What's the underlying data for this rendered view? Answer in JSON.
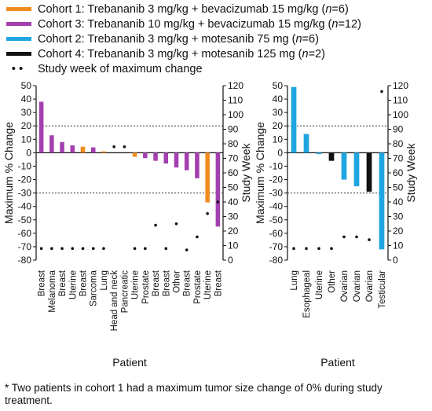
{
  "legend": [
    {
      "label_parts": [
        {
          "t": "Cohort 1: Trebananib 3 mg/kg + bevacizumab 15 mg/kg ("
        },
        {
          "t": "n",
          "i": true
        },
        {
          "t": "=6)"
        }
      ],
      "color": "#f08c1e",
      "kind": "bar"
    },
    {
      "label_parts": [
        {
          "t": "Cohort 3: Trebananib 10 mg/kg + bevacizumab 15 mg/kg ("
        },
        {
          "t": "n",
          "i": true
        },
        {
          "t": "=12)"
        }
      ],
      "color": "#a43fb0",
      "kind": "bar"
    },
    {
      "label_parts": [
        {
          "t": "Cohort 2: Trebananib 3 mg/kg + motesanib 75 mg ("
        },
        {
          "t": "n",
          "i": true
        },
        {
          "t": "=6)"
        }
      ],
      "color": "#1fa6e0",
      "kind": "bar"
    },
    {
      "label_parts": [
        {
          "t": "Cohort 4: Trebananib 3 mg/kg + motesanib 125 mg ("
        },
        {
          "t": "n",
          "i": true
        },
        {
          "t": "=2)"
        }
      ],
      "color": "#111111",
      "kind": "bar"
    },
    {
      "label_parts": [
        {
          "t": "Study week of maximum change"
        }
      ],
      "color": "#111111",
      "kind": "dots"
    }
  ],
  "footnote": "* Two patients in cohort 1 had a maximum tumor size change of 0% during study treatment.",
  "chart_data": [
    {
      "type": "bar",
      "xlabel": "Patient",
      "ylabel": "Maximum % Change",
      "y2label": "Study Week",
      "ylim": [
        -80,
        50
      ],
      "y2lim": [
        0,
        120
      ],
      "yticks": [
        50,
        40,
        30,
        20,
        10,
        0,
        -10,
        -20,
        -30,
        -40,
        -50,
        -60,
        -70,
        -80
      ],
      "y2ticks": [
        120,
        110,
        100,
        90,
        80,
        70,
        60,
        50,
        40,
        30,
        20,
        10,
        0
      ],
      "reference_lines": [
        20,
        -30
      ],
      "categories": [
        "Breast",
        "Melanoma",
        "Breast",
        "Uterine",
        "Breast",
        "Sarcoma",
        "Lung",
        "Head and neck",
        "Pancreatic",
        "Uterine",
        "Prostate",
        "Breast",
        "Breast",
        "Other",
        "Breast",
        "Prostate",
        "Uterine",
        "Breast"
      ],
      "values": [
        38,
        13,
        8,
        5.5,
        4.5,
        4,
        1,
        0,
        0,
        -3,
        -4,
        -6,
        -8,
        -11,
        -13,
        -19,
        -37,
        -55
      ],
      "cohorts": [
        3,
        3,
        3,
        3,
        1,
        3,
        1,
        1,
        1,
        1,
        3,
        3,
        3,
        3,
        3,
        3,
        1,
        3
      ],
      "study_week": [
        8,
        8,
        8,
        8,
        8,
        8,
        8,
        78,
        78,
        8,
        8,
        24,
        8,
        25,
        7,
        16,
        32,
        40
      ]
    },
    {
      "type": "bar",
      "xlabel": "Patient",
      "ylabel": "Maximum % Change",
      "y2label": "Study Week",
      "ylim": [
        -80,
        50
      ],
      "y2lim": [
        0,
        120
      ],
      "yticks": [
        50,
        40,
        30,
        20,
        10,
        0,
        -10,
        -20,
        -30,
        -40,
        -50,
        -60,
        -70,
        -80
      ],
      "y2ticks": [
        120,
        110,
        100,
        90,
        80,
        70,
        60,
        50,
        40,
        30,
        20,
        10,
        0
      ],
      "reference_lines": [
        20,
        -30
      ],
      "categories": [
        "Lung",
        "Esophageal",
        "Uterine",
        "Other",
        "Ovarian",
        "Ovarian",
        "Ovarian",
        "Testicular"
      ],
      "values": [
        49,
        14,
        -1,
        -6,
        -20,
        -25,
        -29,
        -72
      ],
      "cohorts": [
        2,
        2,
        2,
        4,
        2,
        2,
        4,
        2
      ],
      "study_week": [
        8,
        8,
        8,
        8,
        16,
        16,
        14,
        116
      ]
    }
  ]
}
